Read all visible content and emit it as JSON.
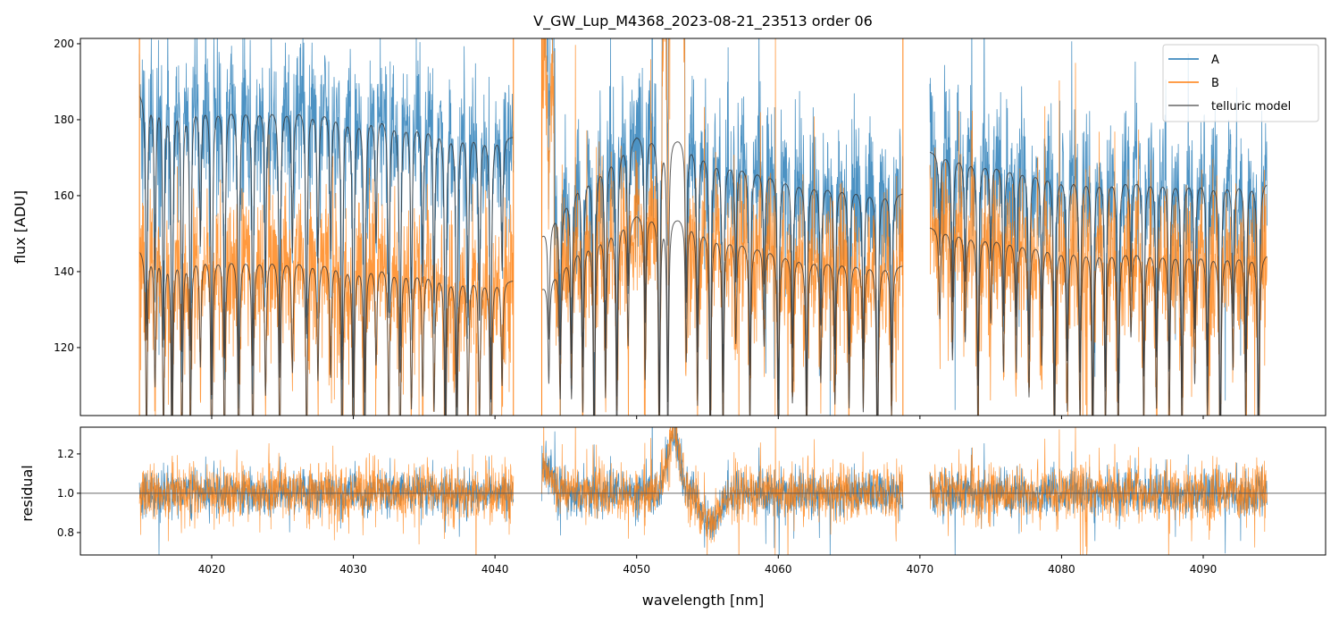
{
  "chart_data": {
    "type": "line",
    "title": "V_GW_Lup_M4368_2023-08-21_23513  order 06",
    "xlabel": "wavelength [nm]",
    "panels": [
      {
        "name": "flux",
        "ylabel": "flux [ADU]",
        "ylim": [
          102.1,
          201.4
        ],
        "yticks": [
          120,
          140,
          160,
          180,
          200
        ],
        "yticklabels": [
          "120",
          "140",
          "160",
          "180",
          "200"
        ]
      },
      {
        "name": "residual",
        "ylabel": "residual",
        "ylim": [
          0.686,
          1.336
        ],
        "yticks": [
          0.8,
          1.0,
          1.2
        ],
        "yticklabels": [
          "0.8",
          "1.0",
          "1.2"
        ],
        "reference_line": 1.0
      }
    ],
    "xlim": [
      4010.73,
      4098.64
    ],
    "xticks": [
      4020,
      4030,
      4040,
      4050,
      4060,
      4070,
      4080,
      4090
    ],
    "xticklabels": [
      "4020",
      "4030",
      "4040",
      "4050",
      "4060",
      "4070",
      "4080",
      "4090"
    ],
    "legend": {
      "placement": "top-right",
      "entries": [
        "A",
        "B",
        "telluric model"
      ]
    },
    "colors": {
      "A": "#1f77b4",
      "B": "#ff7f0e",
      "model": "#333333"
    },
    "segments": [
      [
        4014.9,
        4041.3
      ],
      [
        4043.3,
        4068.8
      ],
      [
        4070.7,
        4094.5
      ]
    ],
    "continuum_A": [
      [
        4014.9,
        188
      ],
      [
        4020,
        185
      ],
      [
        4030,
        183
      ],
      [
        4041.3,
        176
      ],
      [
        4043.3,
        150
      ],
      [
        4046,
        165
      ],
      [
        4050,
        177
      ],
      [
        4053,
        176
      ],
      [
        4056,
        170
      ],
      [
        4062,
        164
      ],
      [
        4068.8,
        161
      ],
      [
        4070.7,
        172
      ],
      [
        4080,
        166
      ],
      [
        4094.5,
        164
      ]
    ],
    "continuum_B": [
      [
        4014.9,
        146.5
      ],
      [
        4020,
        145
      ],
      [
        4030,
        143
      ],
      [
        4041.3,
        138
      ],
      [
        4043.3,
        136
      ],
      [
        4046,
        148
      ],
      [
        4050,
        156
      ],
      [
        4053,
        155
      ],
      [
        4056,
        150
      ],
      [
        4062,
        144
      ],
      [
        4068.8,
        142
      ],
      [
        4070.7,
        152
      ],
      [
        4080,
        147
      ],
      [
        4094.5,
        145
      ]
    ],
    "telluric_lines": [
      4015.4,
      4016.0,
      4016.6,
      4017.2,
      4017.9,
      4018.5,
      4019.2,
      4020.0,
      4020.9,
      4021.9,
      4022.9,
      4023.8,
      4024.8,
      4025.7,
      4026.7,
      4027.5,
      4028.4,
      4029.2,
      4030.0,
      4030.8,
      4031.6,
      4032.5,
      4033.3,
      4034.1,
      4034.9,
      4035.7,
      4036.5,
      4037.3,
      4038.1,
      4038.9,
      4039.7,
      4040.5,
      4043.8,
      4044.6,
      4045.4,
      4046.2,
      4047.0,
      4047.8,
      4048.6,
      4049.4,
      4050.6,
      4051.6,
      4052.2,
      4053.5,
      4054.3,
      4055.2,
      4056.1,
      4057.0,
      4058.0,
      4059.0,
      4060.0,
      4061.0,
      4062.0,
      4063.0,
      4064.0,
      4065.0,
      4066.0,
      4067.0,
      4068.0,
      4071.4,
      4072.3,
      4073.2,
      4074.1,
      4075.0,
      4075.9,
      4076.8,
      4077.7,
      4078.6,
      4079.5,
      4080.4,
      4081.3,
      4082.2,
      4083.1,
      4084.0,
      4084.9,
      4085.8,
      4086.7,
      4087.6,
      4088.5,
      4089.4,
      4090.3,
      4091.2,
      4092.1,
      4093.0,
      4093.9
    ],
    "emission_feature": {
      "center": 4052.6,
      "width": 0.6,
      "residual_peak": 1.3
    },
    "residual_dip": {
      "range": [
        4054,
        4056.5
      ],
      "level": 0.85
    },
    "noise_rel": {
      "A": 0.06,
      "B": 0.07
    }
  }
}
